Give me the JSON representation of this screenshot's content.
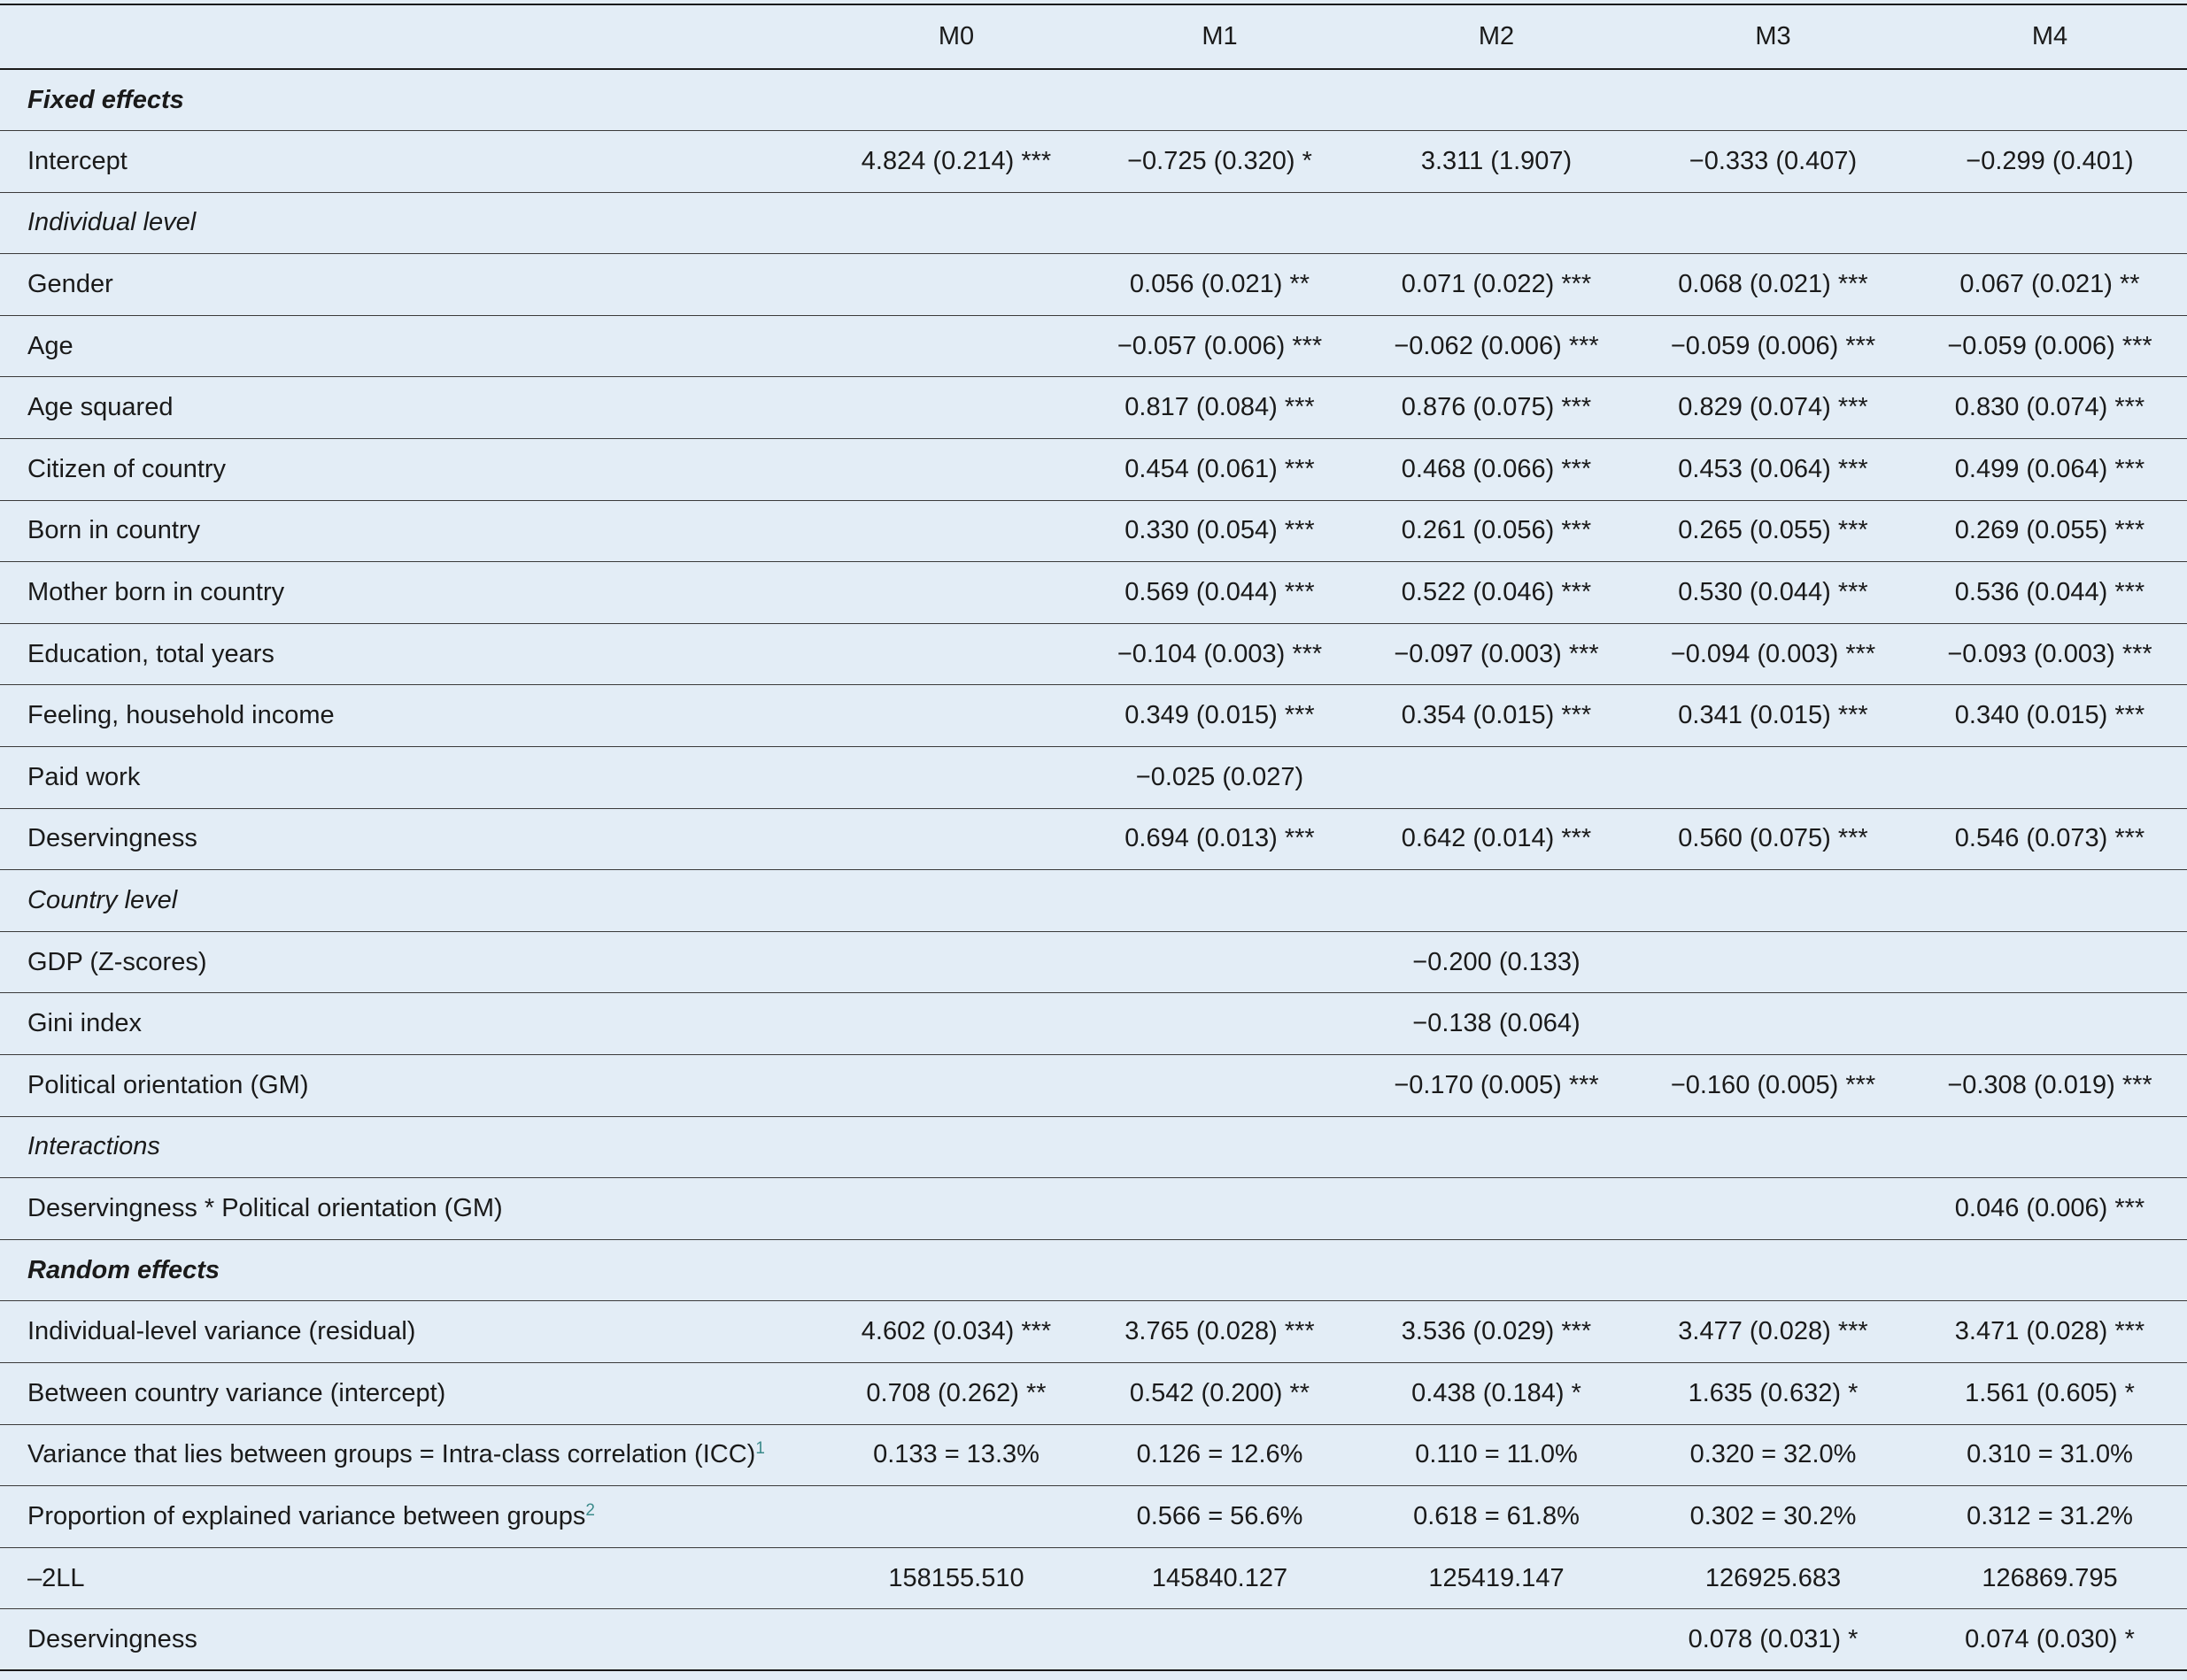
{
  "columns": [
    "",
    "M0",
    "M1",
    "M2",
    "M3",
    "M4"
  ],
  "rows": [
    {
      "type": "section",
      "bold": true,
      "label": "Fixed effects",
      "values": [
        "",
        "",
        "",
        "",
        ""
      ]
    },
    {
      "type": "data",
      "label": "Intercept",
      "values": [
        "4.824 (0.214) ***",
        "−0.725 (0.320) *",
        "3.311 (1.907)",
        "−0.333 (0.407)",
        "−0.299 (0.401)"
      ]
    },
    {
      "type": "section",
      "bold": false,
      "label": "Individual level",
      "values": [
        "",
        "",
        "",
        "",
        ""
      ]
    },
    {
      "type": "data",
      "label": "Gender",
      "values": [
        "",
        "0.056 (0.021) **",
        "0.071 (0.022) ***",
        "0.068 (0.021) ***",
        "0.067 (0.021) **"
      ]
    },
    {
      "type": "data",
      "label": "Age",
      "values": [
        "",
        "−0.057 (0.006) ***",
        "−0.062 (0.006) ***",
        "−0.059 (0.006) ***",
        "−0.059 (0.006) ***"
      ]
    },
    {
      "type": "data",
      "label": "Age squared",
      "values": [
        "",
        "0.817 (0.084) ***",
        "0.876 (0.075) ***",
        "0.829 (0.074) ***",
        "0.830 (0.074) ***"
      ]
    },
    {
      "type": "data",
      "label": "Citizen of country",
      "values": [
        "",
        "0.454 (0.061) ***",
        "0.468 (0.066) ***",
        "0.453 (0.064) ***",
        "0.499 (0.064) ***"
      ]
    },
    {
      "type": "data",
      "label": "Born in country",
      "values": [
        "",
        "0.330 (0.054) ***",
        "0.261 (0.056) ***",
        "0.265 (0.055) ***",
        "0.269 (0.055) ***"
      ]
    },
    {
      "type": "data",
      "label": "Mother born in country",
      "values": [
        "",
        "0.569 (0.044) ***",
        "0.522 (0.046) ***",
        "0.530 (0.044) ***",
        "0.536 (0.044) ***"
      ]
    },
    {
      "type": "data",
      "label": "Education, total years",
      "values": [
        "",
        "−0.104 (0.003) ***",
        "−0.097 (0.003) ***",
        "−0.094 (0.003) ***",
        "−0.093 (0.003) ***"
      ]
    },
    {
      "type": "data",
      "label": "Feeling, household income",
      "values": [
        "",
        "0.349 (0.015) ***",
        "0.354 (0.015) ***",
        "0.341 (0.015) ***",
        "0.340 (0.015) ***"
      ]
    },
    {
      "type": "data",
      "label": "Paid work",
      "values": [
        "",
        "−0.025 (0.027)",
        "",
        "",
        ""
      ]
    },
    {
      "type": "data",
      "label": "Deservingness",
      "values": [
        "",
        "0.694 (0.013) ***",
        "0.642 (0.014) ***",
        "0.560 (0.075) ***",
        "0.546 (0.073) ***"
      ]
    },
    {
      "type": "section",
      "bold": false,
      "label": "Country level",
      "values": [
        "",
        "",
        "",
        "",
        ""
      ]
    },
    {
      "type": "data",
      "label": "GDP (Z-scores)",
      "values": [
        "",
        "",
        "−0.200 (0.133)",
        "",
        ""
      ]
    },
    {
      "type": "data",
      "label": "Gini index",
      "values": [
        "",
        "",
        "−0.138 (0.064)",
        "",
        ""
      ]
    },
    {
      "type": "data",
      "label": "Political orientation (GM)",
      "values": [
        "",
        "",
        "−0.170 (0.005) ***",
        "−0.160 (0.005) ***",
        "−0.308 (0.019) ***"
      ]
    },
    {
      "type": "section",
      "bold": false,
      "label": "Interactions",
      "values": [
        "",
        "",
        "",
        "",
        ""
      ]
    },
    {
      "type": "data",
      "label": "Deservingness * Political orientation (GM)",
      "values": [
        "",
        "",
        "",
        "",
        "0.046 (0.006) ***"
      ]
    },
    {
      "type": "section",
      "bold": true,
      "label": "Random effects",
      "values": [
        "",
        "",
        "",
        "",
        ""
      ]
    },
    {
      "type": "data",
      "label": "Individual-level variance (residual)",
      "values": [
        "4.602 (0.034) ***",
        "3.765 (0.028) ***",
        "3.536 (0.029) ***",
        "3.477 (0.028) ***",
        "3.471 (0.028) ***"
      ]
    },
    {
      "type": "data",
      "label": "Between country variance (intercept)",
      "values": [
        "0.708 (0.262) **",
        "0.542 (0.200) **",
        "0.438 (0.184) *",
        "1.635 (0.632) *",
        "1.561 (0.605) *"
      ]
    },
    {
      "type": "data",
      "label": "Variance that lies between groups = Intra-class correlation (ICC)",
      "footnote": "1",
      "values": [
        "0.133 = 13.3%",
        "0.126 = 12.6%",
        "0.110 = 11.0%",
        "0.320 = 32.0%",
        "0.310 = 31.0%"
      ]
    },
    {
      "type": "data",
      "label": "Proportion of explained variance between groups",
      "footnote": "2",
      "values": [
        "",
        "0.566 = 56.6%",
        "0.618 = 61.8%",
        "0.302 = 30.2%",
        "0.312 = 31.2%"
      ]
    },
    {
      "type": "data",
      "label": "–2LL",
      "values": [
        "158155.510",
        "145840.127",
        "125419.147",
        "126925.683",
        "126869.795"
      ]
    },
    {
      "type": "data",
      "label": "Deservingness",
      "values": [
        "",
        "",
        "",
        "0.078 (0.031) *",
        "0.074 (0.030) *"
      ]
    }
  ],
  "colors": {
    "background": "#e3edf6",
    "rule": "#1a1a1a",
    "footnote": "#3b8a8a"
  }
}
